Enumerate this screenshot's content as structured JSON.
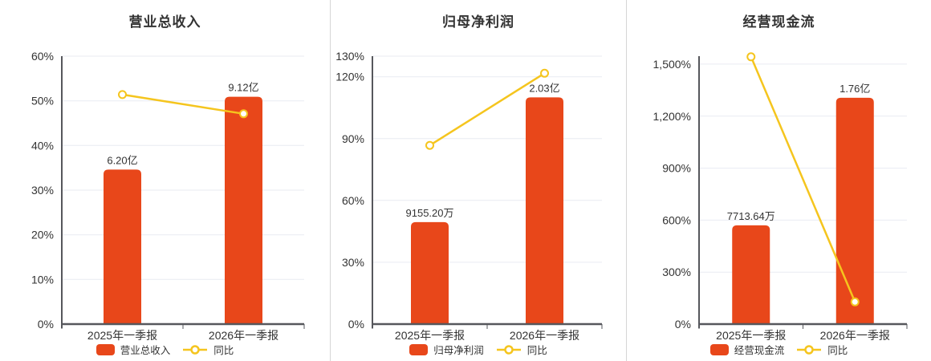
{
  "style": {
    "bar_color": "#E8471A",
    "line_color": "#F5C51E",
    "grid_color": "#E9EBF2",
    "axis_color": "#56575C",
    "text_color": "#333333",
    "divider_color": "#D6D6D6",
    "background": "#FFFFFF",
    "marker_fill": "#FFFFFF"
  },
  "icons": {
    "legend_bar_icon": "rounded-rect-swatch",
    "legend_line_icon": "line-with-hollow-circle-marker"
  },
  "chart_data": [
    {
      "type": "bar+line",
      "title": "营业总收入",
      "categories": [
        "2025年一季报",
        "2026年一季报"
      ],
      "bar_series": {
        "name": "营业总收入",
        "value_labels": [
          "6.20亿",
          "9.12亿"
        ],
        "display_values": [
          34.6,
          50.9
        ]
      },
      "line_series": {
        "name": "同比",
        "values": [
          51.4,
          47.1
        ]
      },
      "ylim": [
        0,
        60
      ],
      "yticks": [
        0,
        10,
        20,
        30,
        40,
        50,
        60
      ],
      "ytick_labels": [
        "0%",
        "10%",
        "20%",
        "30%",
        "40%",
        "50%",
        "60%"
      ],
      "legend": [
        "营业总收入",
        "同比"
      ],
      "legend_position": "bottom",
      "grid": true,
      "note": "bars labeled with absolute values, plotted against shared % axis; line is YoY %"
    },
    {
      "type": "bar+line",
      "title": "归母净利润",
      "categories": [
        "2025年一季报",
        "2026年一季报"
      ],
      "bar_series": {
        "name": "归母净利润",
        "value_labels": [
          "9155.20万",
          "2.03亿"
        ],
        "display_values": [
          49.5,
          110
        ]
      },
      "line_series": {
        "name": "同比",
        "values": [
          86.7,
          121.7
        ]
      },
      "ylim": [
        0,
        130
      ],
      "yticks": [
        0,
        30,
        60,
        90,
        120,
        130
      ],
      "ytick_labels": [
        "0%",
        "30%",
        "60%",
        "90%",
        "120%",
        "130%"
      ],
      "legend": [
        "归母净利润",
        "同比"
      ],
      "legend_position": "bottom",
      "grid": true,
      "note": "bars labeled with absolute values, plotted against shared % axis; line is YoY %"
    },
    {
      "type": "bar+line",
      "title": "经营现金流",
      "categories": [
        "2025年一季报",
        "2026年一季报"
      ],
      "bar_series": {
        "name": "经营现金流",
        "value_labels": [
          "7713.64万",
          "1.76亿"
        ],
        "display_values": [
          570,
          1306
        ]
      },
      "line_series": {
        "name": "同比",
        "values": [
          1542.5,
          128.2
        ]
      },
      "ylim": [
        0,
        1546
      ],
      "yticks": [
        0,
        300,
        600,
        900,
        1200,
        1500
      ],
      "ytick_labels": [
        "0%",
        "300%",
        "600%",
        "900%",
        "1,200%",
        "1,500%"
      ],
      "legend": [
        "经营现金流",
        "同比"
      ],
      "legend_position": "bottom",
      "grid": true,
      "note": "bars labeled with absolute values, plotted against shared % axis; line is YoY %"
    }
  ]
}
